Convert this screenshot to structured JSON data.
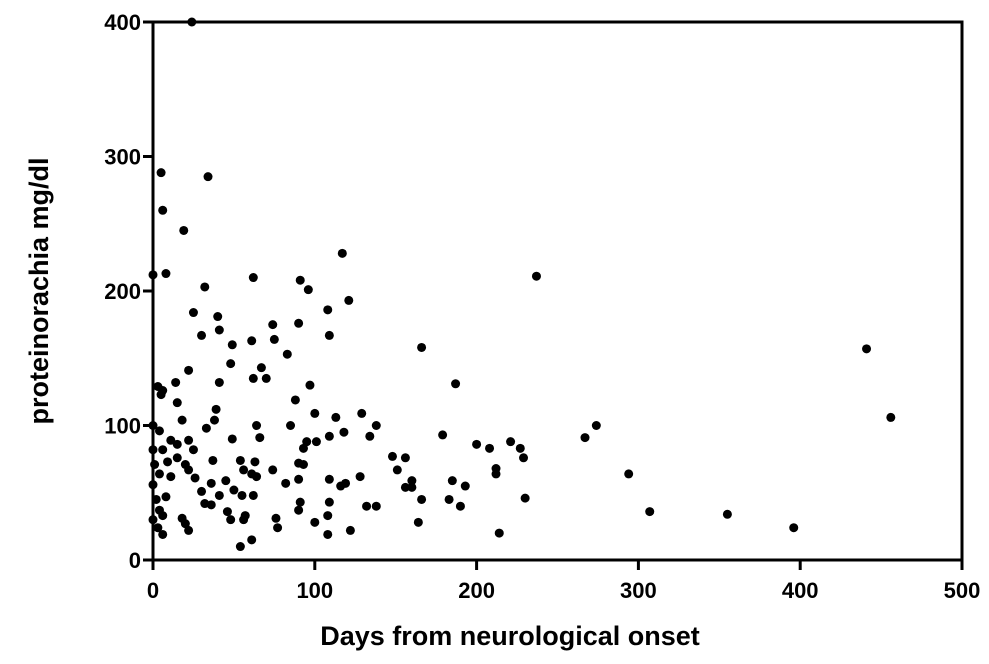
{
  "chart_data": {
    "type": "scatter",
    "x_label": "Days from neurological onset",
    "y_label": "proteinorachia mg/dl",
    "xlim": [
      0,
      500
    ],
    "xticks": [
      0,
      100,
      200,
      300,
      400,
      500
    ],
    "ylim": [
      0,
      400
    ],
    "yticks": [
      0,
      100,
      200,
      300,
      400
    ],
    "color": "#000000",
    "x": [
      24,
      5,
      34,
      6,
      19,
      117,
      8,
      0,
      62,
      91,
      237,
      32,
      96,
      121,
      40,
      74,
      90,
      25,
      41,
      108,
      109,
      30,
      49,
      61,
      75,
      166,
      441,
      83,
      48,
      67,
      22,
      62,
      70,
      3,
      14,
      41,
      97,
      187,
      6,
      15,
      5,
      39,
      88,
      100,
      129,
      456,
      18,
      38,
      113,
      64,
      85,
      138,
      274,
      0,
      4,
      118,
      101,
      134,
      179,
      66,
      33,
      267,
      11,
      22,
      49,
      95,
      109,
      0,
      6,
      15,
      25,
      93,
      200,
      208,
      221,
      227,
      15,
      37,
      9,
      54,
      63,
      90,
      148,
      156,
      229,
      1,
      20,
      22,
      56,
      74,
      212,
      93,
      151,
      294,
      4,
      11,
      61,
      26,
      45,
      64,
      90,
      109,
      128,
      212,
      160,
      36,
      82,
      116,
      119,
      185,
      193,
      0,
      156,
      160,
      30,
      50,
      55,
      8,
      41,
      62,
      166,
      183,
      230,
      2,
      32,
      36,
      91,
      109,
      132,
      138,
      190,
      4,
      46,
      90,
      307,
      355,
      6,
      18,
      57,
      76,
      108,
      0,
      48,
      100,
      164,
      20,
      56,
      3,
      396,
      22,
      122,
      6,
      108,
      214,
      61,
      54,
      77
    ],
    "y": [
      400,
      288,
      285,
      260,
      245,
      228,
      213,
      212,
      210,
      208,
      211,
      203,
      201,
      193,
      181,
      175,
      176,
      184,
      171,
      186,
      167,
      167,
      160,
      163,
      164,
      158,
      157,
      153,
      146,
      143,
      141,
      135,
      135,
      129,
      132,
      132,
      130,
      131,
      126,
      117,
      123,
      112,
      119,
      109,
      109,
      106,
      104,
      104,
      106,
      100,
      100,
      100,
      100,
      100,
      96,
      95,
      88,
      92,
      93,
      91,
      98,
      91,
      89,
      89,
      90,
      88,
      92,
      82,
      82,
      86,
      82,
      83,
      86,
      83,
      88,
      83,
      76,
      74,
      73,
      74,
      73,
      72,
      77,
      76,
      76,
      71,
      71,
      67,
      67,
      67,
      68,
      71,
      67,
      64,
      64,
      62,
      64,
      61,
      59,
      62,
      60,
      60,
      62,
      64,
      59,
      57,
      57,
      55,
      57,
      59,
      55,
      56,
      54,
      54,
      51,
      52,
      48,
      47,
      48,
      48,
      45,
      45,
      46,
      45,
      42,
      41,
      43,
      43,
      40,
      40,
      40,
      37,
      36,
      37,
      36,
      34,
      33,
      31,
      33,
      31,
      33,
      30,
      30,
      28,
      28,
      27,
      30,
      24,
      24,
      22,
      22,
      19,
      19,
      20,
      15,
      10,
      24
    ]
  }
}
